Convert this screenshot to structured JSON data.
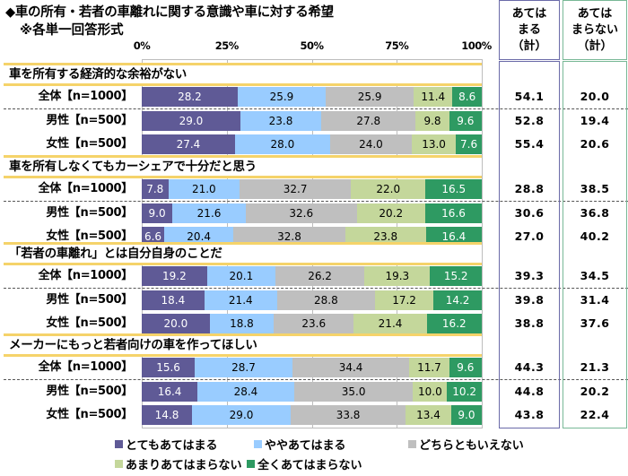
{
  "chart_data": {
    "type": "bar",
    "orientation": "horizontal",
    "stacked": true,
    "title": "◆車の所有・若者の車離れに関する意識や車に対する希望",
    "subtitle": "※各単一回答形式",
    "xlim": [
      0,
      100
    ],
    "x_ticks": [
      "0%",
      "25%",
      "50%",
      "75%",
      "100%"
    ],
    "grid": true,
    "legend_position": "bottom",
    "legend": [
      {
        "name": "とてもあてはまる",
        "color": "#5f5a96"
      },
      {
        "name": "ややあてはまる",
        "color": "#99ccff"
      },
      {
        "name": "どちらともいえない",
        "color": "#bfbfbf"
      },
      {
        "name": "あまりあてはまらない",
        "color": "#c4d79b"
      },
      {
        "name": "全くあてはまらない",
        "color": "#2e9a62"
      }
    ],
    "summary_columns": [
      {
        "label_lines": [
          "あてはま",
          "まる",
          "（計）"
        ],
        "label": "あてはまる（計）",
        "border_color": "#6a6aa8"
      },
      {
        "label_lines": [
          "あてはま",
          "まらない",
          "（計）"
        ],
        "label": "あてはまらない（計）",
        "border_color": "#78b896"
      }
    ],
    "groups": [
      {
        "question": "車を所有する経済的な余裕がない",
        "rows": [
          {
            "label": "全体【n=1000】",
            "values": [
              28.2,
              25.9,
              25.9,
              11.4,
              8.6
            ],
            "agree_total": "54.1",
            "disagree_total": "20.0"
          },
          {
            "label": "男性【n=500】",
            "values": [
              29.0,
              23.8,
              27.8,
              9.8,
              9.6
            ],
            "agree_total": "52.8",
            "disagree_total": "19.4"
          },
          {
            "label": "女性【n=500】",
            "values": [
              27.4,
              28.0,
              24.0,
              13.0,
              7.6
            ],
            "agree_total": "55.4",
            "disagree_total": "20.6"
          }
        ]
      },
      {
        "question": "車を所有しなくてもカーシェアで十分だと思う",
        "rows": [
          {
            "label": "全体【n=1000】",
            "values": [
              7.8,
              21.0,
              32.7,
              22.0,
              16.5
            ],
            "agree_total": "28.8",
            "disagree_total": "38.5"
          },
          {
            "label": "男性【n=500】",
            "values": [
              9.0,
              21.6,
              32.6,
              20.2,
              16.6
            ],
            "agree_total": "30.6",
            "disagree_total": "36.8"
          },
          {
            "label": "女性【n=500】",
            "values": [
              6.6,
              20.4,
              32.8,
              23.8,
              16.4
            ],
            "agree_total": "27.0",
            "disagree_total": "40.2"
          }
        ]
      },
      {
        "question": "「若者の車離れ」とは自分自身のことだ",
        "rows": [
          {
            "label": "全体【n=1000】",
            "values": [
              19.2,
              20.1,
              26.2,
              19.3,
              15.2
            ],
            "agree_total": "39.3",
            "disagree_total": "34.5"
          },
          {
            "label": "男性【n=500】",
            "values": [
              18.4,
              21.4,
              28.8,
              17.2,
              14.2
            ],
            "agree_total": "39.8",
            "disagree_total": "31.4"
          },
          {
            "label": "女性【n=500】",
            "values": [
              20.0,
              18.8,
              23.6,
              21.4,
              16.2
            ],
            "agree_total": "38.8",
            "disagree_total": "37.6"
          }
        ]
      },
      {
        "question": "メーカーにもっと若者向けの車を作ってほしい",
        "rows": [
          {
            "label": "全体【n=1000】",
            "values": [
              15.6,
              28.7,
              34.4,
              11.7,
              9.6
            ],
            "agree_total": "44.3",
            "disagree_total": "21.3"
          },
          {
            "label": "男性【n=500】",
            "values": [
              16.4,
              28.4,
              35.0,
              10.0,
              10.2
            ],
            "agree_total": "44.8",
            "disagree_total": "20.2"
          },
          {
            "label": "女性【n=500】",
            "values": [
              14.8,
              29.0,
              33.8,
              13.4,
              9.0
            ],
            "agree_total": "43.8",
            "disagree_total": "22.4"
          }
        ]
      }
    ]
  }
}
